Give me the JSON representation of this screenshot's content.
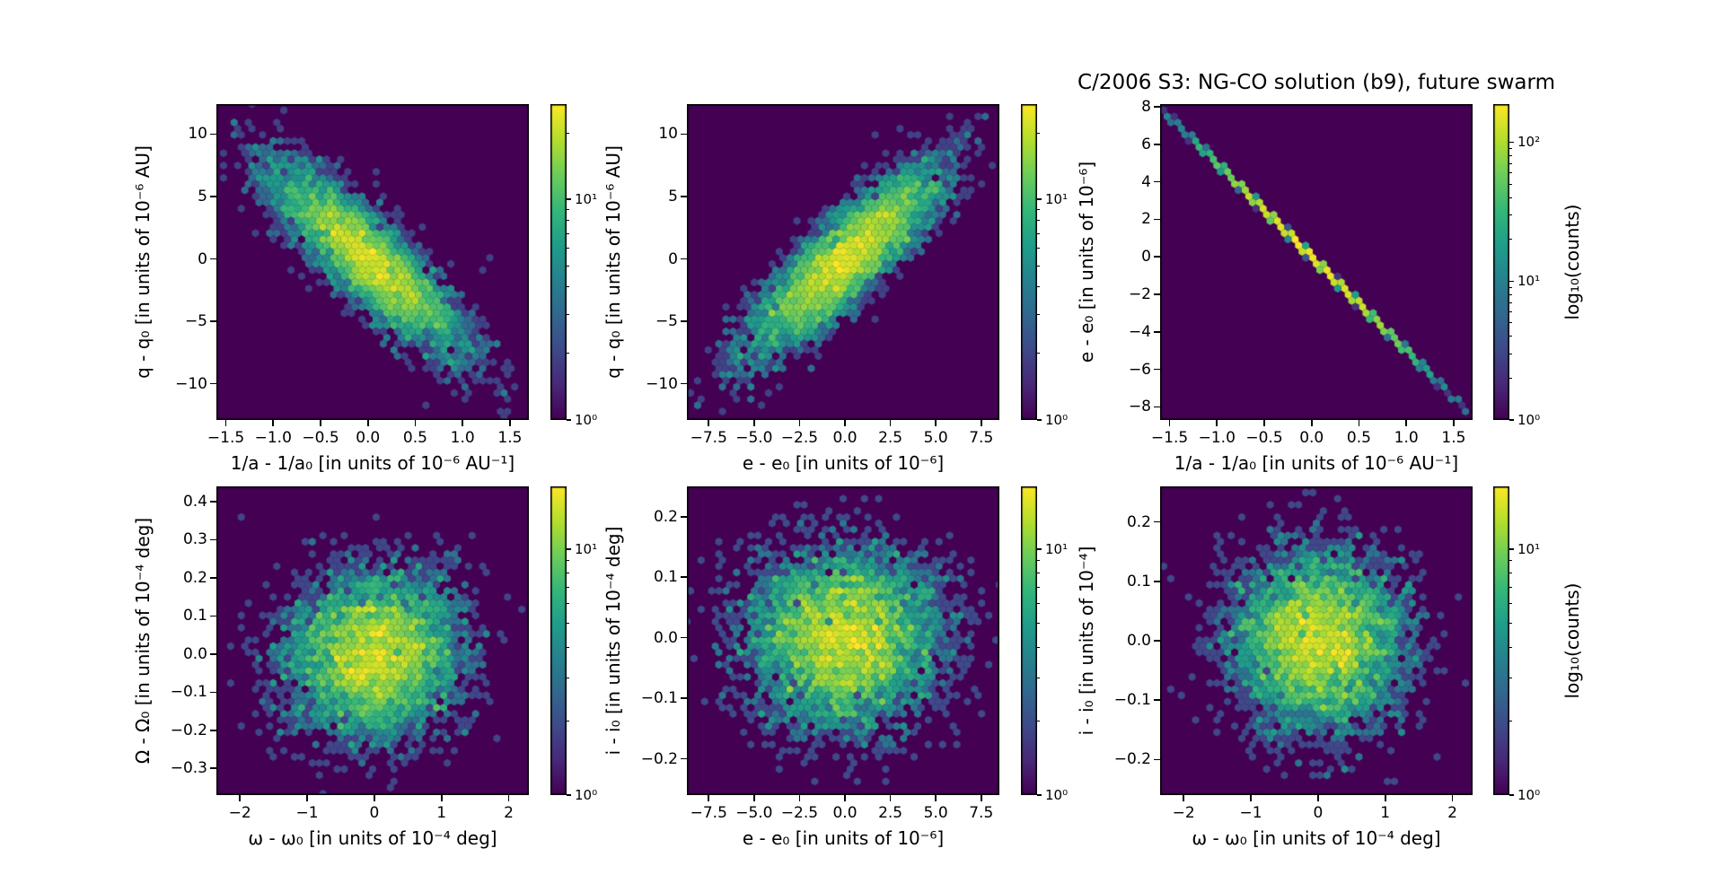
{
  "figure": {
    "title": "C/2006 S3: NG-CO solution (b9), future swarm",
    "background": "#ffffff",
    "spine_color": "#000000"
  },
  "chart_data": {
    "type": "hexbin",
    "norm": "log",
    "colormap": "viridis",
    "colormap_stops": [
      [
        68,
        1,
        84
      ],
      [
        72,
        40,
        120
      ],
      [
        62,
        74,
        137
      ],
      [
        49,
        104,
        142
      ],
      [
        38,
        130,
        142
      ],
      [
        31,
        158,
        137
      ],
      [
        53,
        183,
        121
      ],
      [
        109,
        205,
        89
      ],
      [
        180,
        222,
        44
      ],
      [
        253,
        231,
        37
      ]
    ],
    "hex_background": "#440154",
    "gridsize": 44,
    "rows": 2,
    "cols": 3,
    "subplots": [
      {
        "key": "q-q0-vs-1a-1a0",
        "row": 0,
        "col": 0,
        "xlabel": "1/a - 1/a₀ [in units of 10⁻⁶ AU⁻¹]",
        "ylabel": "q - q₀ [in units of 10⁻⁶ AU]",
        "xlim": [
          -1.6,
          1.7
        ],
        "ylim": [
          -12.9,
          12.4
        ],
        "xticks": [
          -1.5,
          -1.0,
          -0.5,
          0.0,
          0.5,
          1.0,
          1.5
        ],
        "xtick_labels": [
          "−1.5",
          "−1.0",
          "−0.5",
          "0.0",
          "0.5",
          "1.0",
          "1.5"
        ],
        "yticks": [
          10,
          5,
          0,
          -5,
          -10
        ],
        "ytick_labels": [
          "10",
          "5",
          "0",
          "−5",
          "−10"
        ],
        "data_model": {
          "kind": "gaussian",
          "n": 5000,
          "sigma_x": 0.5,
          "sigma_y": 3.7,
          "rho": -0.86,
          "seed": 101
        },
        "colorbar": {
          "vmax": 27,
          "ticks": [
            1,
            10
          ],
          "tick_labels": [
            "10⁰",
            "10¹"
          ],
          "label": null
        }
      },
      {
        "key": "q-q0-vs-e-e0",
        "row": 0,
        "col": 1,
        "xlabel": "e - e₀ [in units of 10⁻⁶]",
        "ylabel": "q - q₀ [in units of 10⁻⁶ AU]",
        "xlim": [
          -8.7,
          8.5
        ],
        "ylim": [
          -12.9,
          12.4
        ],
        "xticks": [
          -7.5,
          -5.0,
          -2.5,
          0.0,
          2.5,
          5.0,
          7.5
        ],
        "xtick_labels": [
          "−7.5",
          "−5.0",
          "−2.5",
          "0.0",
          "2.5",
          "5.0",
          "7.5"
        ],
        "yticks": [
          10,
          5,
          0,
          -5,
          -10
        ],
        "ytick_labels": [
          "10",
          "5",
          "0",
          "−5",
          "−10"
        ],
        "data_model": {
          "kind": "gaussian",
          "n": 5000,
          "sigma_x": 2.6,
          "sigma_y": 3.7,
          "rho": 0.86,
          "seed": 102
        },
        "colorbar": {
          "vmax": 27,
          "ticks": [
            1,
            10
          ],
          "tick_labels": [
            "10⁰",
            "10¹"
          ],
          "label": null
        }
      },
      {
        "key": "e-e0-vs-1a-1a0",
        "row": 0,
        "col": 2,
        "xlabel": "1/a - 1/a₀ [in units of 10⁻⁶ AU⁻¹]",
        "ylabel": "e - e₀ [in units of 10⁻⁶]",
        "xlim": [
          -1.6,
          1.7
        ],
        "ylim": [
          -8.7,
          8.15
        ],
        "xticks": [
          -1.5,
          -1.0,
          -0.5,
          0.0,
          0.5,
          1.0,
          1.5
        ],
        "xtick_labels": [
          "−1.5",
          "−1.0",
          "−0.5",
          "0.0",
          "0.5",
          "1.0",
          "1.5"
        ],
        "yticks": [
          8,
          6,
          4,
          2,
          0,
          -2,
          -4,
          -6,
          -8
        ],
        "ytick_labels": [
          "8",
          "6",
          "4",
          "2",
          "0",
          "−2",
          "−4",
          "−6",
          "−8"
        ],
        "data_model": {
          "kind": "line",
          "n": 5000,
          "sigma_x": 0.55,
          "slope": -5.0,
          "noise": 0.035,
          "seed": 103
        },
        "colorbar": {
          "vmax": 188,
          "ticks": [
            1,
            10,
            100
          ],
          "tick_labels": [
            "10⁰",
            "10¹",
            "10²"
          ],
          "label": "log₁₀(counts)"
        }
      },
      {
        "key": "Omega-Omega0-vs-omega-omega0",
        "row": 1,
        "col": 0,
        "xlabel": "ω - ω₀ [in units of 10⁻⁴ deg]",
        "ylabel": "Ω - Ω₀ [in units of 10⁻⁴ deg]",
        "xlim": [
          -2.35,
          2.3
        ],
        "ylim": [
          -0.37,
          0.44
        ],
        "xticks": [
          -2,
          -1,
          0,
          1,
          2
        ],
        "xtick_labels": [
          "−2",
          "−1",
          "0",
          "1",
          "2"
        ],
        "yticks": [
          0.4,
          0.3,
          0.2,
          0.1,
          0.0,
          -0.1,
          -0.2,
          -0.3
        ],
        "ytick_labels": [
          "0.4",
          "0.3",
          "0.2",
          "0.1",
          "0.0",
          "−0.1",
          "−0.2",
          "−0.3"
        ],
        "data_model": {
          "kind": "gaussian",
          "n": 5000,
          "sigma_x": 0.62,
          "sigma_y": 0.105,
          "rho": 0.05,
          "seed": 104
        },
        "colorbar": {
          "vmax": 18,
          "ticks": [
            1,
            10
          ],
          "tick_labels": [
            "10⁰",
            "10¹"
          ],
          "label": null
        }
      },
      {
        "key": "i-i0-vs-e-e0",
        "row": 1,
        "col": 1,
        "xlabel": "e - e₀ [in units of 10⁻⁶]",
        "ylabel": "i - i₀ [in units of 10⁻⁴ deg]",
        "xlim": [
          -8.7,
          8.5
        ],
        "ylim": [
          -0.26,
          0.25
        ],
        "xticks": [
          -7.5,
          -5.0,
          -2.5,
          0.0,
          2.5,
          5.0,
          7.5
        ],
        "xtick_labels": [
          "−7.5",
          "−5.0",
          "−2.5",
          "0.0",
          "2.5",
          "5.0",
          "7.5"
        ],
        "yticks": [
          0.2,
          0.1,
          0.0,
          -0.1,
          -0.2
        ],
        "ytick_labels": [
          "0.2",
          "0.1",
          "0.0",
          "−0.1",
          "−0.2"
        ],
        "data_model": {
          "kind": "gaussian",
          "n": 5000,
          "sigma_x": 2.6,
          "sigma_y": 0.072,
          "rho": 0.0,
          "seed": 105
        },
        "colorbar": {
          "vmax": 18,
          "ticks": [
            1,
            10
          ],
          "tick_labels": [
            "10⁰",
            "10¹"
          ],
          "label": null
        }
      },
      {
        "key": "i-i0-vs-omega-omega0",
        "row": 1,
        "col": 2,
        "xlabel": "ω - ω₀ [in units of 10⁻⁴ deg]",
        "ylabel": "i - i₀ [in units of 10⁻⁴]",
        "xlim": [
          -2.35,
          2.3
        ],
        "ylim": [
          -0.26,
          0.26
        ],
        "xticks": [
          -2,
          -1,
          0,
          1,
          2
        ],
        "xtick_labels": [
          "−2",
          "−1",
          "0",
          "1",
          "2"
        ],
        "yticks": [
          0.2,
          0.1,
          0.0,
          -0.1,
          -0.2
        ],
        "ytick_labels": [
          "0.2",
          "0.1",
          "0.0",
          "−0.1",
          "−0.2"
        ],
        "data_model": {
          "kind": "gaussian",
          "n": 5000,
          "sigma_x": 0.62,
          "sigma_y": 0.072,
          "rho": 0.0,
          "seed": 106
        },
        "colorbar": {
          "vmax": 18,
          "ticks": [
            1,
            10
          ],
          "tick_labels": [
            "10⁰",
            "10¹"
          ],
          "label": "log₁₀(counts)"
        }
      }
    ]
  }
}
